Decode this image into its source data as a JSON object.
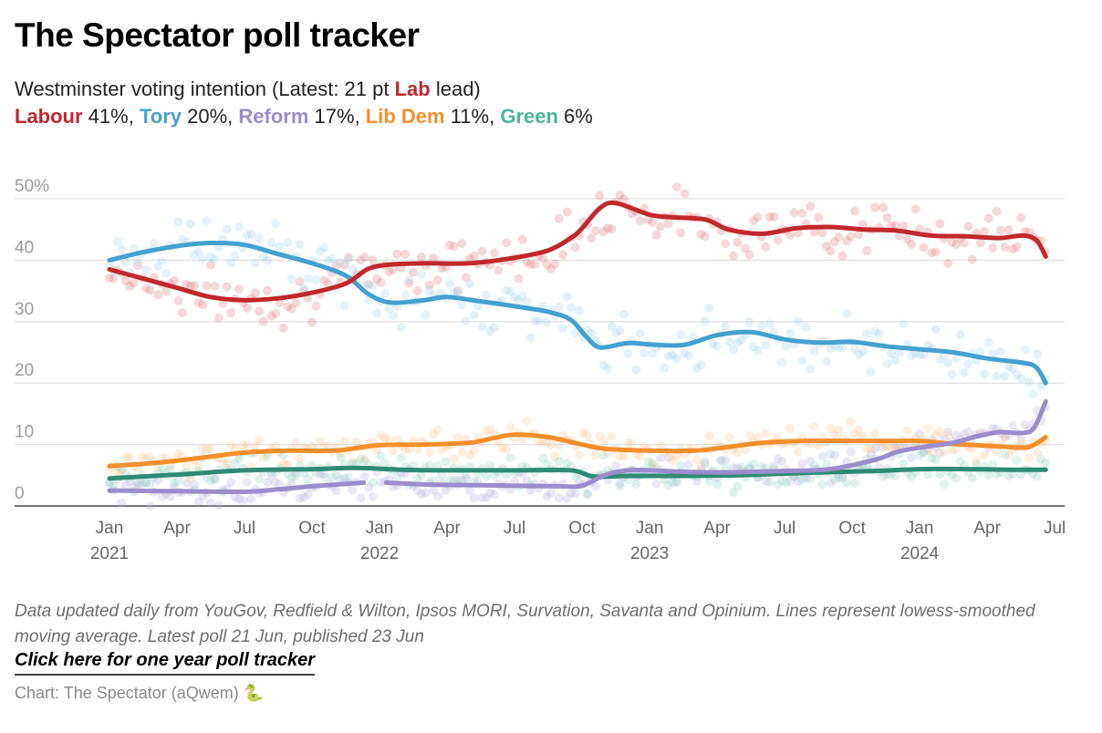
{
  "header": {
    "title": "The Spectator poll tracker",
    "subtitle_prefix": "Westminster voting intention (Latest: 21 pt ",
    "subtitle_party": "Lab",
    "subtitle_suffix": " lead)"
  },
  "legend": [
    {
      "name": "Labour",
      "value_text": " 41%",
      "sep": ", ",
      "color": "#c0282d"
    },
    {
      "name": "Tory",
      "value_text": " 20%",
      "sep": ", ",
      "color": "#44a0cf"
    },
    {
      "name": "Reform",
      "value_text": " 17%",
      "sep": ", ",
      "color": "#9b8dcc"
    },
    {
      "name": "Lib Dem",
      "value_text": " 11%",
      "sep": ", ",
      "color": "#f28f2c"
    },
    {
      "name": "Green",
      "value_text": " 6%",
      "sep": "",
      "color": "#49b59a"
    }
  ],
  "chart_data": {
    "type": "line",
    "title": "The Spectator poll tracker",
    "subtitle": "Westminster voting intention (Latest: 21 pt Lab lead)",
    "xlabel": "",
    "ylabel": "",
    "ylim": [
      0,
      50
    ],
    "y_ticks": [
      {
        "value": 0,
        "label": "0"
      },
      {
        "value": 10,
        "label": "10"
      },
      {
        "value": 20,
        "label": "20"
      },
      {
        "value": 30,
        "label": "30"
      },
      {
        "value": 40,
        "label": "40"
      },
      {
        "value": 50,
        "label": "50%"
      }
    ],
    "x_unit": "months since Jan 2021",
    "xlim": [
      -1.7,
      42.3
    ],
    "x_ticks": [
      {
        "month": 0,
        "label": "Jan",
        "year": "2021"
      },
      {
        "month": 3,
        "label": "Apr",
        "year": ""
      },
      {
        "month": 6,
        "label": "Jul",
        "year": ""
      },
      {
        "month": 9,
        "label": "Oct",
        "year": ""
      },
      {
        "month": 12,
        "label": "Jan",
        "year": "2022"
      },
      {
        "month": 15,
        "label": "Apr",
        "year": ""
      },
      {
        "month": 18,
        "label": "Jul",
        "year": ""
      },
      {
        "month": 21,
        "label": "Oct",
        "year": ""
      },
      {
        "month": 24,
        "label": "Jan",
        "year": "2023"
      },
      {
        "month": 27,
        "label": "Apr",
        "year": ""
      },
      {
        "month": 30,
        "label": "Jul",
        "year": ""
      },
      {
        "month": 33,
        "label": "Oct",
        "year": ""
      },
      {
        "month": 36,
        "label": "Jan",
        "year": "2024"
      },
      {
        "month": 39,
        "label": "Apr",
        "year": ""
      },
      {
        "month": 42,
        "label": "Jul",
        "year": ""
      }
    ],
    "grid": true,
    "legend_placement": "top (in subtitle)",
    "series": [
      {
        "name": "Labour",
        "color": "#c0282d",
        "latest": 41,
        "x": [
          0,
          1.5,
          3,
          4.5,
          6,
          7.5,
          9,
          10.5,
          11.5,
          12.5,
          14,
          16,
          18,
          19.5,
          20.5,
          21,
          21.8,
          22.5,
          24,
          25,
          26.5,
          27.5,
          29,
          30.5,
          32,
          33.5,
          35,
          36.5,
          38,
          39.5,
          40.6,
          41.2,
          41.6
        ],
        "values": [
          38.5,
          37.0,
          35.5,
          34.0,
          33.5,
          33.8,
          34.7,
          36.2,
          38.6,
          39.3,
          39.5,
          39.5,
          40.4,
          41.6,
          43.6,
          45.2,
          48.5,
          49.3,
          47.4,
          47.0,
          46.6,
          45.0,
          44.3,
          45.2,
          45.4,
          45.0,
          44.8,
          44.0,
          43.9,
          43.6,
          44.0,
          43.2,
          40.6
        ]
      },
      {
        "name": "Tory",
        "color": "#44a0cf",
        "latest": 20,
        "x": [
          0,
          1.5,
          3,
          4.5,
          6,
          7.5,
          9,
          10.5,
          11.5,
          12.5,
          14,
          15,
          16.5,
          18,
          19.5,
          20.5,
          21.2,
          21.8,
          23,
          24,
          25.5,
          27,
          28.5,
          30,
          31.5,
          33,
          34.5,
          36,
          37.5,
          39,
          40.6,
          41.2,
          41.6
        ],
        "values": [
          40.0,
          41.3,
          42.3,
          42.8,
          42.5,
          41.0,
          39.5,
          37.5,
          34.5,
          33.1,
          33.5,
          34.0,
          33.3,
          32.5,
          31.6,
          30.3,
          27.5,
          25.8,
          26.5,
          26.3,
          26.2,
          27.8,
          28.3,
          27.1,
          26.6,
          26.7,
          26.0,
          25.5,
          25.0,
          24.0,
          23.3,
          22.5,
          20.0
        ]
      },
      {
        "name": "Reform",
        "color": "#9b8dcc",
        "latest": 17,
        "x": [
          0,
          3,
          6,
          7.5,
          9,
          10.5,
          11.3,
          12.3,
          14,
          16,
          18,
          20,
          21,
          22,
          23,
          24,
          26,
          28,
          30,
          32,
          34,
          35,
          36,
          37.5,
          38.5,
          39.5,
          40.6,
          41.1,
          41.6
        ],
        "values": [
          2.5,
          2.4,
          2.3,
          2.7,
          3.2,
          3.6,
          3.8,
          3.8,
          3.5,
          3.4,
          3.3,
          3.2,
          3.3,
          5.0,
          5.8,
          5.8,
          5.5,
          5.5,
          5.7,
          6.0,
          7.5,
          8.8,
          9.5,
          10.3,
          11.3,
          12.0,
          11.9,
          12.8,
          17.0
        ],
        "gap_between_month": [
          11.3,
          12.3
        ]
      },
      {
        "name": "Lib Dem",
        "color": "#f28f2c",
        "latest": 11,
        "x": [
          0,
          2,
          4,
          6,
          8,
          10,
          12,
          14,
          16,
          17,
          18,
          19.5,
          21,
          22,
          24,
          26,
          27.5,
          29,
          31,
          33,
          35,
          36,
          37.5,
          39,
          40.6,
          41.1,
          41.6
        ],
        "values": [
          6.5,
          7.0,
          7.8,
          8.7,
          9.0,
          9.0,
          9.9,
          10.0,
          10.3,
          11.0,
          11.6,
          11.2,
          10.0,
          9.3,
          9.0,
          9.0,
          9.6,
          10.3,
          10.6,
          10.6,
          10.6,
          10.6,
          10.1,
          9.8,
          9.5,
          10.0,
          11.2
        ]
      },
      {
        "name": "Green",
        "color": "#2e8b73",
        "latest": 6,
        "x": [
          0,
          3,
          6,
          9,
          11,
          13,
          15,
          18,
          20.5,
          21.5,
          23,
          25,
          28,
          31,
          34,
          36,
          38,
          40,
          41.6
        ],
        "values": [
          4.5,
          5.1,
          5.8,
          6.0,
          6.2,
          5.9,
          5.8,
          5.8,
          5.8,
          4.8,
          4.9,
          4.9,
          5.0,
          5.4,
          5.7,
          6.0,
          6.0,
          5.9,
          5.9
        ]
      }
    ],
    "note": "Semi-transparent scatter dots show individual polls around each smoothed line"
  },
  "footer": {
    "notes": "Data updated daily from YouGov, Redfield & Wilton, Ipsos MORI, Survation, Savanta and Opinium. Lines represent lowess-smoothed moving average. Latest poll 21 Jun, published 23 Jun",
    "link_label": "Click here for one year poll tracker",
    "credit": "Chart: The Spectator (aQwem)",
    "credit_icon": "snake-emoji",
    "credit_icon_glyph": "🐍"
  }
}
